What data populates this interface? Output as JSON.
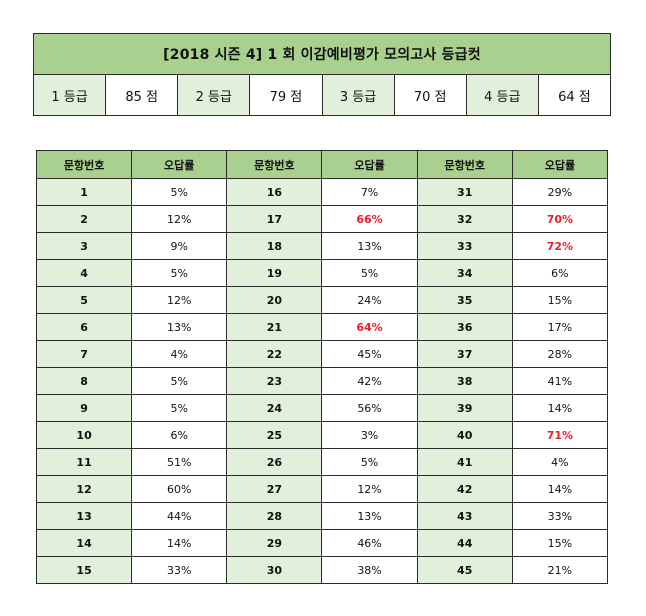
{
  "title": "[2018 시즌 4] 1 회  이감예비평가  모의고사  등급컷",
  "grades": [
    {
      "label": "1 등급",
      "score": "85 점"
    },
    {
      "label": "2 등급",
      "score": "79 점"
    },
    {
      "label": "3 등급",
      "score": "70 점"
    },
    {
      "label": "4 등급",
      "score": "64 점"
    }
  ],
  "table": {
    "headers": [
      "문항번호",
      "오답률",
      "문항번호",
      "오답률",
      "문항번호",
      "오답률"
    ],
    "rows": [
      [
        {
          "q": "1",
          "r": "5%",
          "hi": false
        },
        {
          "q": "16",
          "r": "7%",
          "hi": false
        },
        {
          "q": "31",
          "r": "29%",
          "hi": false
        }
      ],
      [
        {
          "q": "2",
          "r": "12%",
          "hi": false
        },
        {
          "q": "17",
          "r": "66%",
          "hi": true
        },
        {
          "q": "32",
          "r": "70%",
          "hi": true
        }
      ],
      [
        {
          "q": "3",
          "r": "9%",
          "hi": false
        },
        {
          "q": "18",
          "r": "13%",
          "hi": false
        },
        {
          "q": "33",
          "r": "72%",
          "hi": true
        }
      ],
      [
        {
          "q": "4",
          "r": "5%",
          "hi": false
        },
        {
          "q": "19",
          "r": "5%",
          "hi": false
        },
        {
          "q": "34",
          "r": "6%",
          "hi": false
        }
      ],
      [
        {
          "q": "5",
          "r": "12%",
          "hi": false
        },
        {
          "q": "20",
          "r": "24%",
          "hi": false
        },
        {
          "q": "35",
          "r": "15%",
          "hi": false
        }
      ],
      [
        {
          "q": "6",
          "r": "13%",
          "hi": false
        },
        {
          "q": "21",
          "r": "64%",
          "hi": true
        },
        {
          "q": "36",
          "r": "17%",
          "hi": false
        }
      ],
      [
        {
          "q": "7",
          "r": "4%",
          "hi": false
        },
        {
          "q": "22",
          "r": "45%",
          "hi": false
        },
        {
          "q": "37",
          "r": "28%",
          "hi": false
        }
      ],
      [
        {
          "q": "8",
          "r": "5%",
          "hi": false
        },
        {
          "q": "23",
          "r": "42%",
          "hi": false
        },
        {
          "q": "38",
          "r": "41%",
          "hi": false
        }
      ],
      [
        {
          "q": "9",
          "r": "5%",
          "hi": false
        },
        {
          "q": "24",
          "r": "56%",
          "hi": false
        },
        {
          "q": "39",
          "r": "14%",
          "hi": false
        }
      ],
      [
        {
          "q": "10",
          "r": "6%",
          "hi": false
        },
        {
          "q": "25",
          "r": "3%",
          "hi": false
        },
        {
          "q": "40",
          "r": "71%",
          "hi": true
        }
      ],
      [
        {
          "q": "11",
          "r": "51%",
          "hi": false
        },
        {
          "q": "26",
          "r": "5%",
          "hi": false
        },
        {
          "q": "41",
          "r": "4%",
          "hi": false
        }
      ],
      [
        {
          "q": "12",
          "r": "60%",
          "hi": false
        },
        {
          "q": "27",
          "r": "12%",
          "hi": false
        },
        {
          "q": "42",
          "r": "14%",
          "hi": false
        }
      ],
      [
        {
          "q": "13",
          "r": "44%",
          "hi": false
        },
        {
          "q": "28",
          "r": "13%",
          "hi": false
        },
        {
          "q": "43",
          "r": "33%",
          "hi": false
        }
      ],
      [
        {
          "q": "14",
          "r": "14%",
          "hi": false
        },
        {
          "q": "29",
          "r": "46%",
          "hi": false
        },
        {
          "q": "44",
          "r": "15%",
          "hi": false
        }
      ],
      [
        {
          "q": "15",
          "r": "33%",
          "hi": false
        },
        {
          "q": "30",
          "r": "38%",
          "hi": false
        },
        {
          "q": "45",
          "r": "21%",
          "hi": false
        }
      ]
    ]
  },
  "colors": {
    "header_green": "#a9d08e",
    "light_green": "#e2efda",
    "highlight_red": "#e8202a"
  }
}
